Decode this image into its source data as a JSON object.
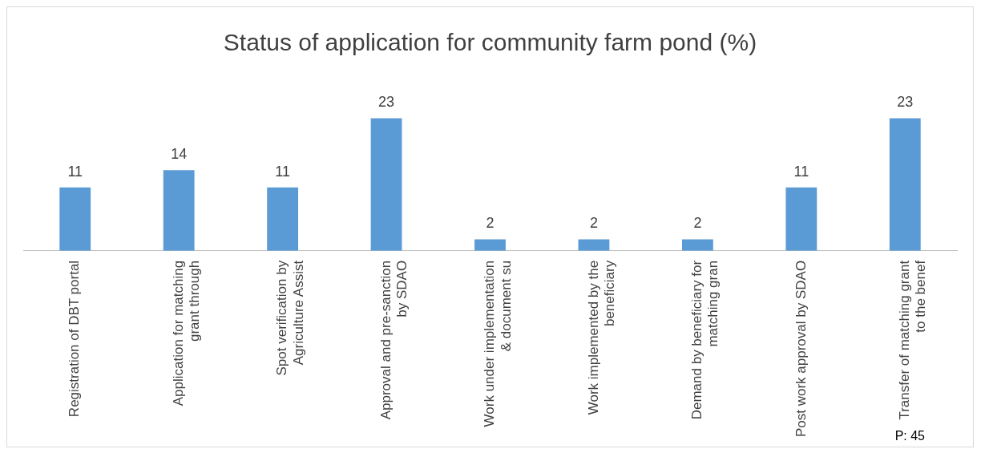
{
  "chart_data": {
    "type": "bar",
    "title": "Status of application for community farm pond (%)",
    "categories": [
      "Registration of DBT portal",
      "Application for matching grant through",
      "Spot verification by Agriculture Assist",
      "Approval and pre-sanction by SDAO",
      "Work under implementation & document su",
      "Work implemented by the beneficiary",
      "Demand by beneficiary for matching gran",
      "Post work approval by SDAO",
      "Transfer of matching grant to the benef"
    ],
    "values": [
      11,
      14,
      11,
      23,
      2,
      2,
      2,
      11,
      23
    ],
    "color": "#5b9bd5",
    "data_labels": true,
    "grid": false,
    "legend": false,
    "annotations": [
      "P: 45"
    ]
  }
}
